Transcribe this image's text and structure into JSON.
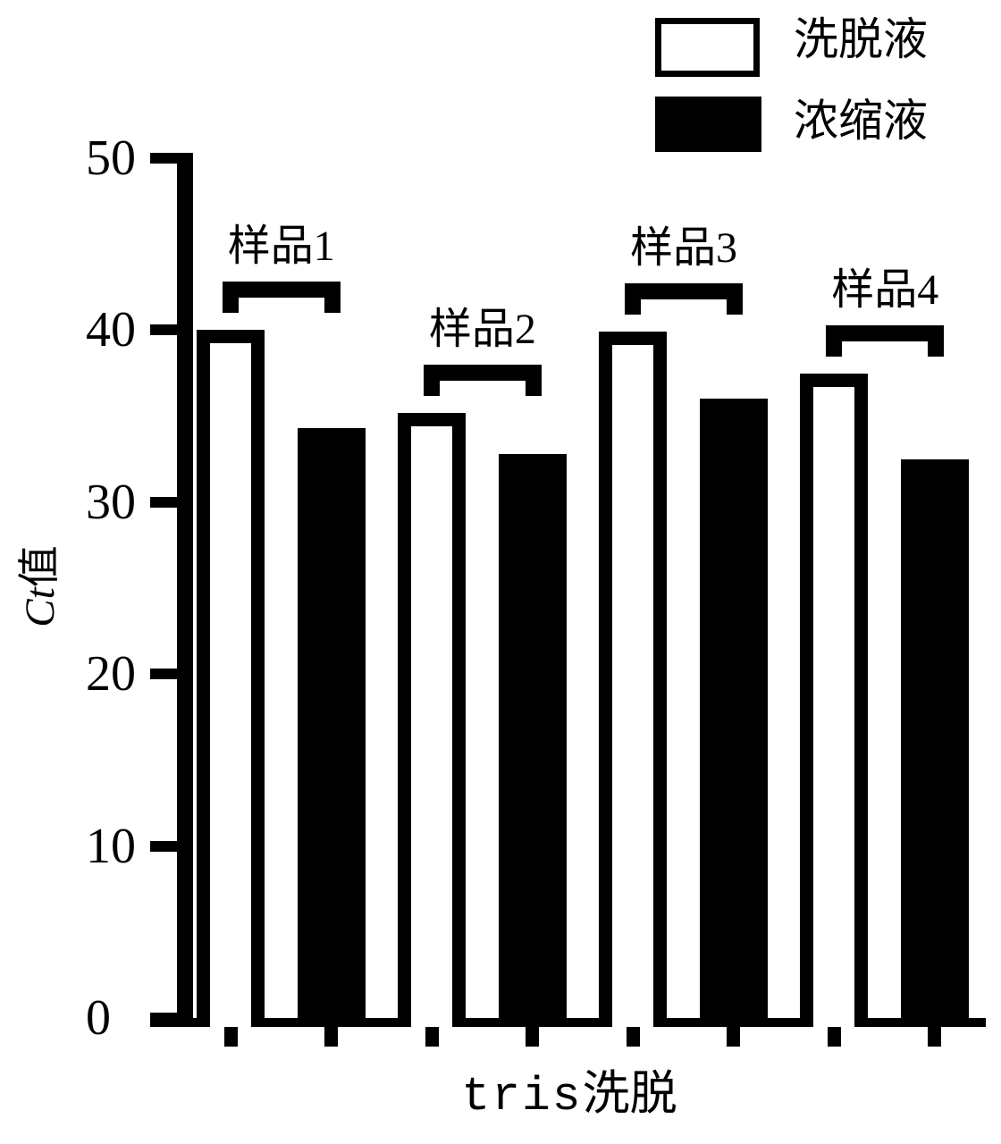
{
  "figure": {
    "background_color": "#ffffff",
    "ink_color": "#000000"
  },
  "legend": {
    "position": "top-right",
    "items": [
      {
        "label": "洗脱液",
        "swatch": "white-bar-black-outline"
      },
      {
        "label": "浓缩液",
        "swatch": "solid-black-bar"
      }
    ]
  },
  "chart_data": {
    "type": "bar",
    "title": "",
    "xlabel": "tris洗脱",
    "xlabel_latin_part": "tris",
    "xlabel_cjk_part": "洗脱",
    "ylabel": "Ct值",
    "ylabel_italic_part": "Ct",
    "ylabel_cjk_part": "值",
    "ylim": [
      0,
      50
    ],
    "yticks": [
      50,
      40,
      30,
      20,
      10,
      0
    ],
    "grid": false,
    "legend_position": "top-right",
    "categories": [
      "样品1",
      "样品2",
      "样品3",
      "样品4"
    ],
    "series": [
      {
        "name": "洗脱液",
        "style": "white bar with black outline",
        "values": [
          40.0,
          35.2,
          39.9,
          37.5
        ]
      },
      {
        "name": "浓缩液",
        "style": "solid black bar",
        "values": [
          34.3,
          32.8,
          36.0,
          32.5
        ]
      }
    ],
    "group_annotations": [
      {
        "label": "样品1",
        "spans_bars": [
          "洗脱液",
          "浓缩液"
        ]
      },
      {
        "label": "样品2",
        "spans_bars": [
          "洗脱液",
          "浓缩液"
        ]
      },
      {
        "label": "样品3",
        "spans_bars": [
          "洗脱液",
          "浓缩液"
        ]
      },
      {
        "label": "样品4",
        "spans_bars": [
          "洗脱液",
          "浓缩液"
        ]
      }
    ]
  }
}
